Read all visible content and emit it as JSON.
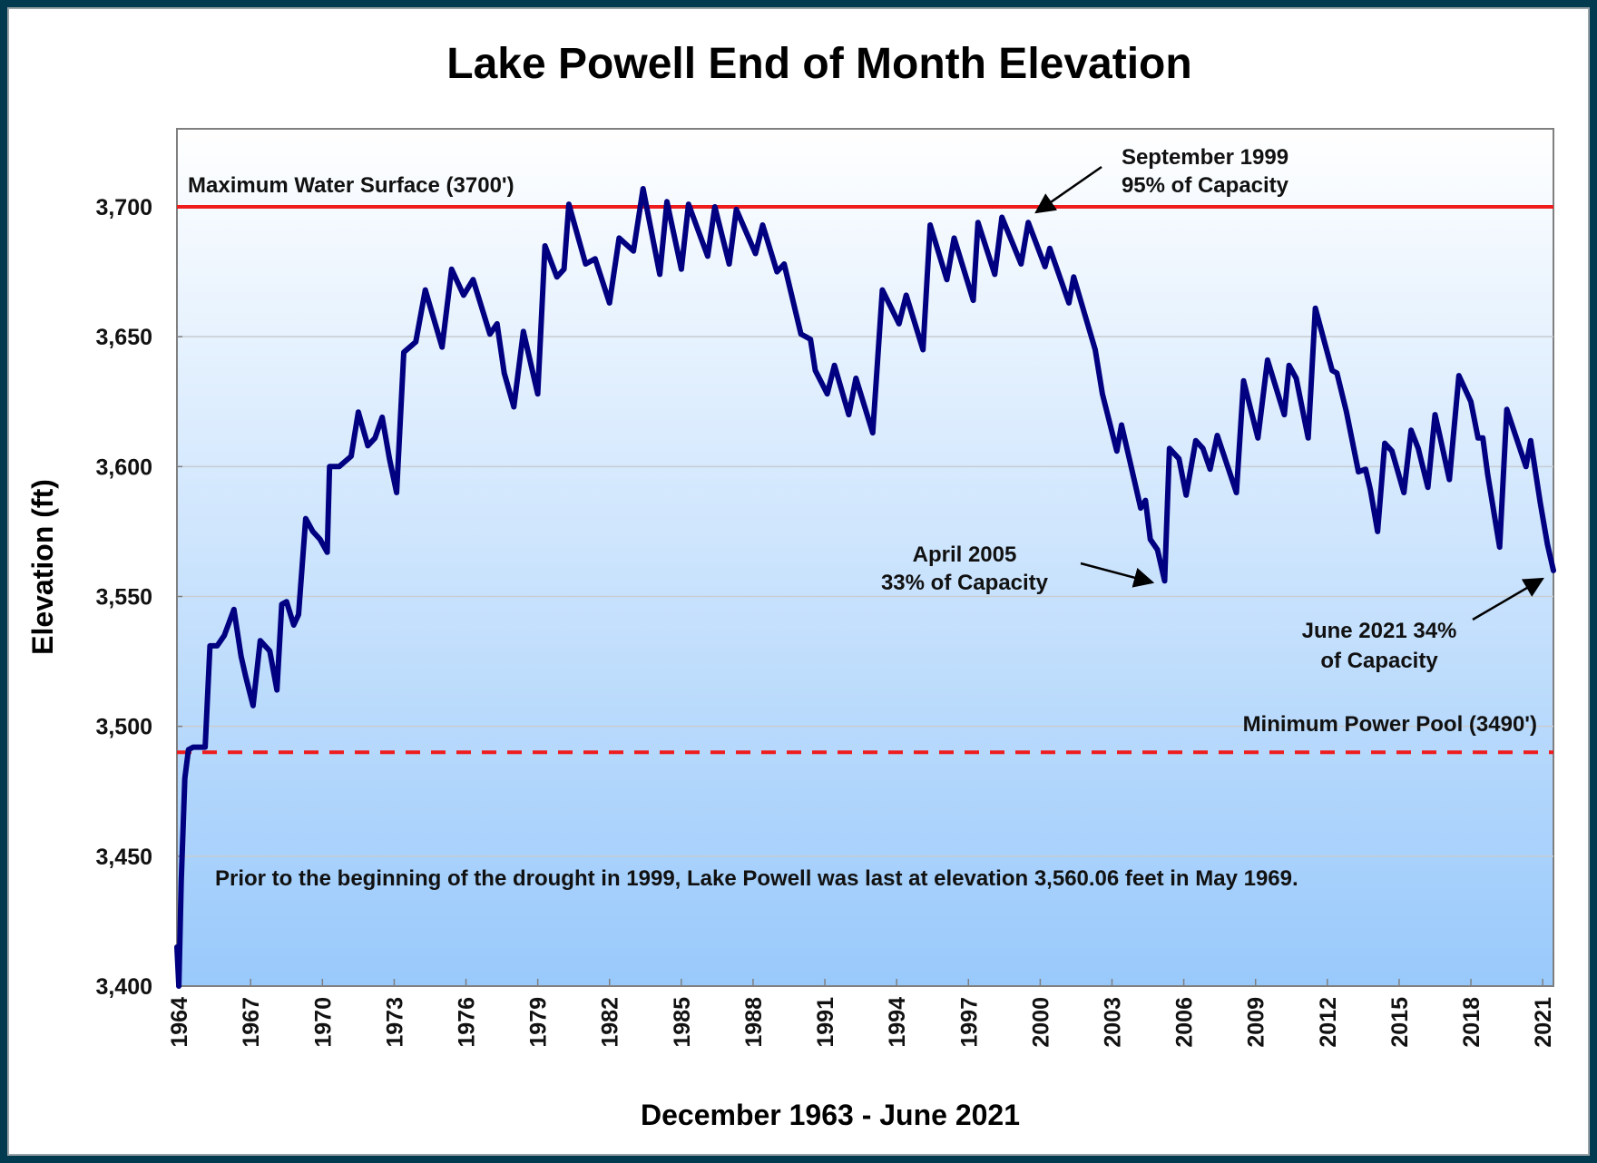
{
  "chart_data": {
    "type": "line",
    "title": "Lake Powell End of Month Elevation",
    "xlabel": "December 1963 - June 2021",
    "ylabel": "Elevation (ft)",
    "xlim": [
      1963.92,
      2021.45
    ],
    "ylim": [
      3400,
      3730
    ],
    "grid": true,
    "x_ticks": [
      1964,
      1967,
      1970,
      1973,
      1976,
      1979,
      1982,
      1985,
      1988,
      1991,
      1994,
      1997,
      2000,
      2003,
      2006,
      2009,
      2012,
      2015,
      2018,
      2021
    ],
    "x_tick_labels": [
      "1964",
      "1967",
      "1970",
      "1973",
      "1976",
      "1979",
      "1982",
      "1985",
      "1988",
      "1991",
      "1994",
      "1997",
      "2000",
      "2003",
      "2006",
      "2009",
      "2012",
      "2015",
      "2018",
      "2021"
    ],
    "y_ticks": [
      3400,
      3450,
      3500,
      3550,
      3600,
      3650,
      3700
    ],
    "y_tick_labels": [
      "3,400",
      "3,450",
      "3,500",
      "3,550",
      "3,600",
      "3,650",
      "3,700"
    ],
    "reference_lines": [
      {
        "name": "max-water-surface",
        "label": "Maximum Water Surface (3700')",
        "value": 3700,
        "style": "solid",
        "color": "#ee1c1c"
      },
      {
        "name": "min-power-pool",
        "label": "Minimum  Power Pool (3490')",
        "value": 3490,
        "style": "dashed",
        "color": "#ee1c1c"
      }
    ],
    "annotations": [
      {
        "name": "sep-1999",
        "lines": [
          "September 1999",
          "95% of Capacity"
        ],
        "target": [
          1999.5,
          3694
        ]
      },
      {
        "name": "apr-2005",
        "lines": [
          "April  2005",
          "33% of Capacity"
        ],
        "target": [
          2005.2,
          3556
        ]
      },
      {
        "name": "jun-2021",
        "lines": [
          "June 2021 34%",
          "of Capacity"
        ],
        "target": [
          2021.4,
          3560
        ]
      }
    ],
    "note": "Prior to the beginning of the drought in 1999, Lake Powell was last at elevation 3,560.06 feet in May 1969.",
    "series": [
      {
        "name": "End of Month Elevation",
        "color": "#000080",
        "x": [
          1963.92,
          1964.0,
          1964.1,
          1964.25,
          1964.4,
          1964.6,
          1965.1,
          1965.3,
          1965.6,
          1965.9,
          1966.3,
          1966.6,
          1966.8,
          1967.1,
          1967.4,
          1967.8,
          1968.1,
          1968.3,
          1968.5,
          1968.8,
          1969.0,
          1969.3,
          1969.6,
          1969.9,
          1970.2,
          1970.3,
          1970.7,
          1971.2,
          1971.5,
          1971.9,
          1972.2,
          1972.5,
          1972.8,
          1973.1,
          1973.4,
          1973.9,
          1974.3,
          1975.0,
          1975.4,
          1975.9,
          1976.3,
          1977.0,
          1977.3,
          1977.6,
          1978.0,
          1978.4,
          1979.0,
          1979.3,
          1979.8,
          1980.1,
          1980.3,
          1981.0,
          1981.4,
          1982.0,
          1982.4,
          1983.0,
          1983.4,
          1984.1,
          1984.4,
          1985.0,
          1985.3,
          1986.1,
          1986.4,
          1987.0,
          1987.3,
          1988.1,
          1988.4,
          1989.0,
          1989.3,
          1990.0,
          1990.4,
          1990.6,
          1991.1,
          1991.4,
          1992.0,
          1992.3,
          1993.0,
          1993.4,
          1994.1,
          1994.4,
          1995.1,
          1995.4,
          1996.1,
          1996.4,
          1997.2,
          1997.4,
          1998.1,
          1998.4,
          1999.2,
          1999.5,
          2000.2,
          2000.4,
          2001.2,
          2001.4,
          2002.3,
          2002.6,
          2003.2,
          2003.4,
          2003.8,
          2004.2,
          2004.4,
          2004.6,
          2004.9,
          2005.2,
          2005.4,
          2005.8,
          2006.1,
          2006.5,
          2006.8,
          2007.1,
          2007.4,
          2008.2,
          2008.5,
          2009.1,
          2009.5,
          2010.2,
          2010.4,
          2010.7,
          2011.2,
          2011.5,
          2012.2,
          2012.4,
          2012.8,
          2013.3,
          2013.6,
          2013.8,
          2014.1,
          2014.4,
          2014.7,
          2015.2,
          2015.5,
          2015.8,
          2016.2,
          2016.5,
          2016.7,
          2017.1,
          2017.5,
          2018.0,
          2018.3,
          2018.5,
          2018.7,
          2019.2,
          2019.5,
          2020.3,
          2020.5,
          2020.9,
          2021.2,
          2021.45
        ],
        "y": [
          3415,
          3400,
          3440,
          3480,
          3491,
          3492,
          3492,
          3531,
          3531,
          3535,
          3545,
          3527,
          3519,
          3508,
          3533,
          3529,
          3514,
          3547,
          3548,
          3539,
          3543,
          3580,
          3575,
          3572,
          3567,
          3600,
          3600,
          3604,
          3621,
          3608,
          3611,
          3619,
          3603,
          3590,
          3644,
          3648,
          3668,
          3646,
          3676,
          3666,
          3672,
          3651,
          3655,
          3636,
          3623,
          3652,
          3628,
          3685,
          3673,
          3676,
          3701,
          3678,
          3680,
          3663,
          3688,
          3683,
          3707,
          3674,
          3702,
          3676,
          3701,
          3681,
          3700,
          3678,
          3699,
          3682,
          3693,
          3675,
          3678,
          3651,
          3649,
          3637,
          3628,
          3639,
          3620,
          3634,
          3613,
          3668,
          3655,
          3666,
          3645,
          3693,
          3672,
          3688,
          3664,
          3694,
          3674,
          3696,
          3678,
          3694,
          3677,
          3684,
          3663,
          3673,
          3645,
          3628,
          3606,
          3616,
          3600,
          3584,
          3587,
          3572,
          3568,
          3556,
          3607,
          3603,
          3589,
          3610,
          3607,
          3599,
          3612,
          3590,
          3633,
          3611,
          3641,
          3620,
          3639,
          3634,
          3611,
          3661,
          3637,
          3636,
          3621,
          3598,
          3599,
          3591,
          3575,
          3609,
          3606,
          3590,
          3614,
          3607,
          3592,
          3620,
          3612,
          3595,
          3635,
          3625,
          3611,
          3611,
          3597,
          3569,
          3622,
          3600,
          3610,
          3586,
          3570,
          3560
        ]
      }
    ]
  }
}
